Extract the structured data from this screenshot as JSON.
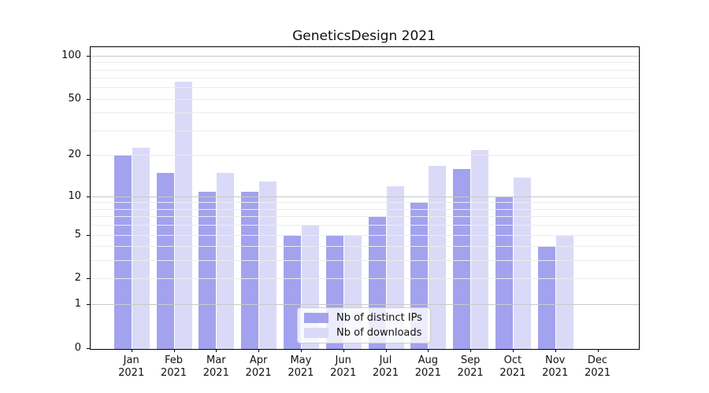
{
  "chart_data": {
    "type": "bar",
    "title": "GeneticsDesign 2021",
    "xlabel": "",
    "ylabel": "",
    "yscale": "log1p",
    "categories": [
      "Jan",
      "Feb",
      "Mar",
      "Apr",
      "May",
      "Jun",
      "Jul",
      "Aug",
      "Sep",
      "Oct",
      "Nov",
      "Dec"
    ],
    "category_year": "2021",
    "series": [
      {
        "name": "Nb of distinct IPs",
        "color": "#a2a2ef",
        "values": [
          20,
          15,
          11,
          11,
          5,
          5,
          7,
          9,
          16,
          10,
          4,
          0
        ]
      },
      {
        "name": "Nb of downloads",
        "color": "#dadaf8",
        "values": [
          23,
          67,
          15,
          13,
          6,
          5,
          12,
          17,
          22,
          14,
          5,
          0
        ]
      }
    ],
    "yticks": [
      {
        "value": 0,
        "label": "0"
      },
      {
        "value": 1,
        "label": "1"
      },
      {
        "value": 2,
        "label": "2"
      },
      {
        "value": 5,
        "label": "5"
      },
      {
        "value": 10,
        "label": "10"
      },
      {
        "value": 20,
        "label": "20"
      },
      {
        "value": 50,
        "label": "50"
      },
      {
        "value": 100,
        "label": "100"
      }
    ],
    "major_gridlines": [
      1,
      10,
      100
    ],
    "minor_gridlines": [
      2,
      3,
      4,
      5,
      6,
      7,
      8,
      9,
      20,
      30,
      40,
      50,
      60,
      70,
      80,
      90
    ],
    "major_grid_color": "#c9c9c9",
    "minor_grid_color": "#ececec",
    "ylim": [
      0,
      116
    ],
    "grid": true,
    "legend_position": "lower center",
    "axis_color": "#000000",
    "background_color": "#ffffff"
  }
}
